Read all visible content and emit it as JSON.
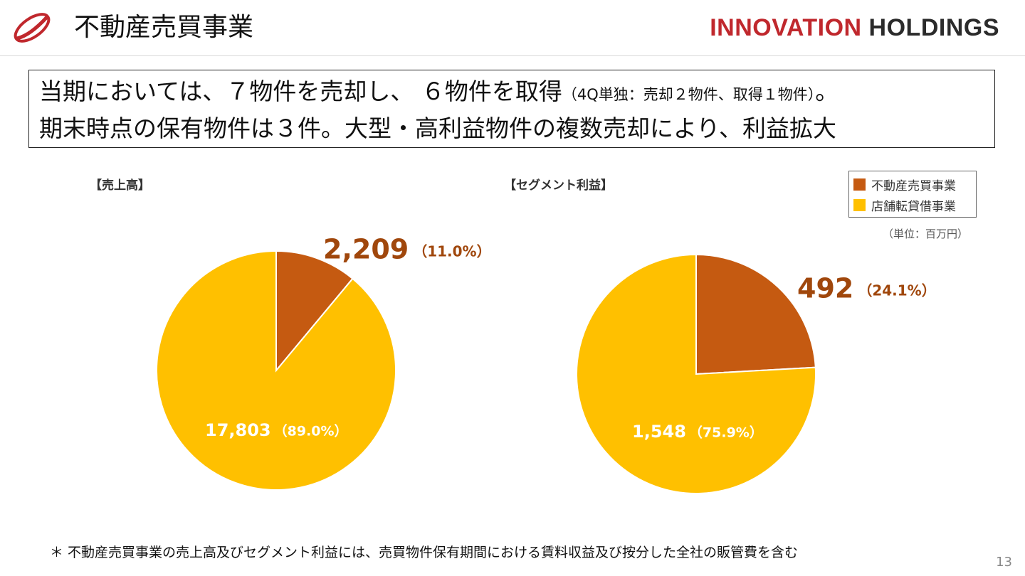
{
  "header": {
    "title": "不動産売買事業",
    "brand_red": "INNOVATION",
    "brand_dark": "HOLDINGS",
    "logo_icon": "swoosh-ellipse-logo"
  },
  "summary": {
    "line1_main": "当期においては、７物件を売却し、 ６物件を取得",
    "line1_note": "（4Q単独：売却２物件、取得１物件）",
    "line1_end": "。",
    "line2": "期末時点の保有物件は３件。大型・高利益物件の複数売却により、利益拡大"
  },
  "legend": {
    "items": [
      {
        "label": "不動産売買事業",
        "color": "#c55a11"
      },
      {
        "label": "店舗転貸借事業",
        "color": "#ffc000"
      }
    ],
    "unit": "（単位：百万円）"
  },
  "chart_data": [
    {
      "type": "pie",
      "title": "【売上高】",
      "series": [
        {
          "name": "不動産売買事業",
          "value": 2209,
          "value_label": "2,209",
          "pct_label": "（11.0%）",
          "color": "#c55a11"
        },
        {
          "name": "店舗転貸借事業",
          "value": 17803,
          "value_label": "17,803",
          "pct_label": "（89.0%）",
          "color": "#ffc000"
        }
      ]
    },
    {
      "type": "pie",
      "title": "【セグメント利益】",
      "series": [
        {
          "name": "不動産売買事業",
          "value": 492,
          "value_label": "492",
          "pct_label": "（24.1%）",
          "color": "#c55a11"
        },
        {
          "name": "店舗転貸借事業",
          "value": 1548,
          "value_label": "1,548",
          "pct_label": "（75.9%）",
          "color": "#ffc000"
        }
      ]
    }
  ],
  "colors": {
    "accent_label": "#a0470c",
    "inside_label": "#ffffff"
  },
  "footnote": "＊ 不動産売買事業の売上高及びセグメント利益には、売買物件保有期間における賃料収益及び按分した全社の販管費を含む",
  "page_number": "13"
}
